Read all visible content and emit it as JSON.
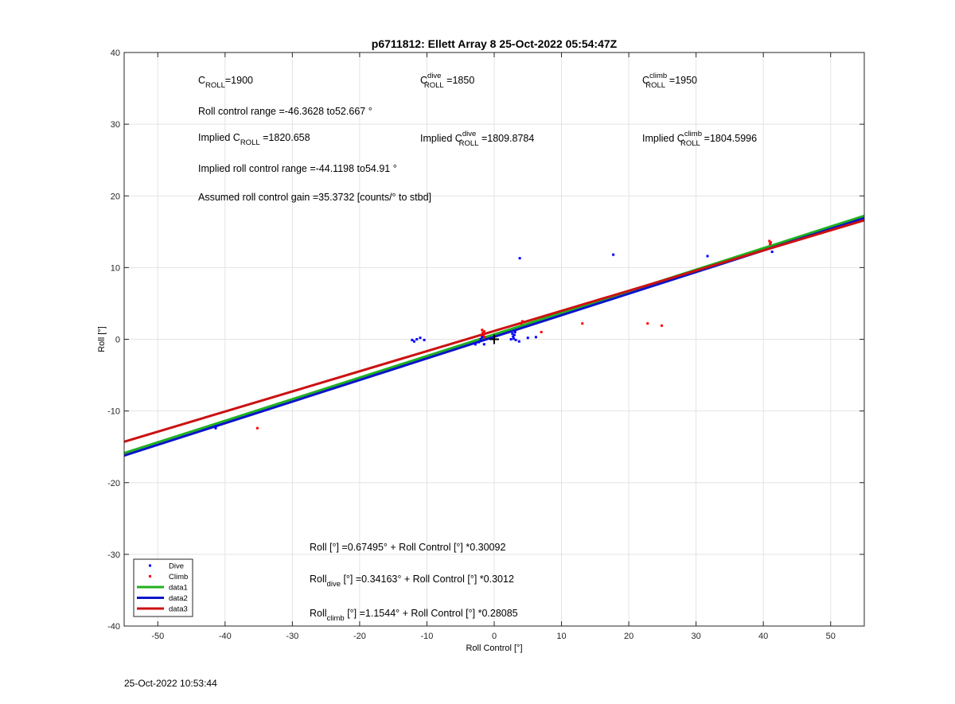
{
  "footer_timestamp": "25-Oct-2022 10:53:44",
  "chart_data": {
    "type": "scatter",
    "title": "p6711812: Ellett Array 8 25-Oct-2022 05:54:47Z",
    "xlabel": "Roll Control [°]",
    "ylabel": "Roll [°]",
    "xlim": [
      -55,
      55
    ],
    "ylim": [
      -40,
      40
    ],
    "xticks": [
      -50,
      -40,
      -30,
      -20,
      -10,
      0,
      10,
      20,
      30,
      40,
      50
    ],
    "yticks": [
      -40,
      -30,
      -20,
      -10,
      0,
      10,
      20,
      30,
      40
    ],
    "grid": true,
    "legend_position": "bottom-left",
    "legend": [
      {
        "label": "Dive",
        "kind": "marker",
        "color": "#0000ff"
      },
      {
        "label": "Climb",
        "kind": "marker",
        "color": "#ff0000"
      },
      {
        "label": "data1",
        "kind": "line",
        "color": "#1fb11f"
      },
      {
        "label": "data2",
        "kind": "line",
        "color": "#0a14c8"
      },
      {
        "label": "data3",
        "kind": "line",
        "color": "#cc1111"
      }
    ],
    "series": [
      {
        "name": "Dive",
        "kind": "points",
        "color": "#0000ff",
        "x": [
          -41.4,
          -41.3,
          -12.2,
          -11.9,
          -11.5,
          -11.0,
          -10.4,
          -2.8,
          -2.3,
          -2.0,
          -1.8,
          -1.6,
          -1.5,
          2.5,
          2.7,
          2.8,
          2.9,
          3.0,
          3.1,
          3.2,
          3.7,
          3.8,
          5.0,
          6.2,
          17.7,
          31.7,
          41.3
        ],
        "y": [
          -12.4,
          -12.1,
          -0.1,
          -0.3,
          0.0,
          0.2,
          -0.1,
          -0.7,
          -0.4,
          0.0,
          0.3,
          0.5,
          -0.7,
          0.0,
          0.8,
          0.4,
          0.1,
          0.6,
          1.0,
          -0.1,
          -0.3,
          11.3,
          0.2,
          0.3,
          11.8,
          11.6,
          12.2
        ]
      },
      {
        "name": "Climb",
        "kind": "points",
        "color": "#ff0000",
        "x": [
          -35.2,
          -1.8,
          -1.7,
          -1.6,
          -1.5,
          -1.4,
          4.0,
          4.2,
          7.0,
          13.1,
          22.8,
          24.9,
          40.9,
          41.0,
          41.1
        ],
        "y": [
          -12.4,
          1.3,
          0.9,
          0.6,
          1.1,
          0.3,
          2.2,
          2.5,
          1.0,
          2.2,
          2.2,
          1.9,
          13.7,
          13.3,
          13.5
        ]
      },
      {
        "name": "data1",
        "kind": "line",
        "color": "#1fb11f",
        "intercept": 0.67495,
        "slope": 0.30092
      },
      {
        "name": "data2",
        "kind": "line",
        "color": "#0a14c8",
        "intercept": 0.34163,
        "slope": 0.3012
      },
      {
        "name": "data3",
        "kind": "line",
        "color": "#cc1111",
        "intercept": 1.1544,
        "slope": 0.28085
      }
    ],
    "center_marker": {
      "x": 0,
      "y": 0,
      "symbol": "+"
    },
    "annotations": {
      "c_roll": {
        "base": "C",
        "sub": "ROLL",
        "sup": "",
        "prefix": "",
        "suffix": "=1900"
      },
      "c_roll_dive": {
        "base": "C",
        "sub": "ROLL",
        "sup": "dive",
        "prefix": "",
        "suffix": " =1850"
      },
      "c_roll_climb": {
        "base": "C",
        "sub": "ROLL",
        "sup": "climb",
        "prefix": "",
        "suffix": " =1950"
      },
      "roll_control_range": "Roll control range =-46.3628 to52.667 °",
      "implied_c_roll": {
        "base": "C",
        "sub": "ROLL",
        "sup": "",
        "prefix": "Implied ",
        "suffix": " =1820.658"
      },
      "implied_c_roll_dive": {
        "base": "C",
        "sub": "ROLL",
        "sup": "dive",
        "prefix": "Implied ",
        "suffix": " =1809.8784"
      },
      "implied_c_roll_climb": {
        "base": "C",
        "sub": "ROLL",
        "sup": "climb",
        "prefix": "Implied ",
        "suffix": " =1804.5996"
      },
      "implied_range": "Implied roll control range =-44.1198 to54.91 °",
      "gain": "Assumed roll control gain =35.3732 [counts/° to stbd]",
      "fit_all": {
        "base": "Roll",
        "sub": "",
        "suffix": " [°] =0.67495° + Roll Control [°] *0.30092"
      },
      "fit_dive": {
        "base": "Roll",
        "sub": "dive",
        "suffix": " [°] =0.34163° + Roll Control [°] *0.3012"
      },
      "fit_climb": {
        "base": "Roll",
        "sub": "climb",
        "suffix": " [°] =1.1544° + Roll Control [°] *0.28085"
      }
    }
  }
}
